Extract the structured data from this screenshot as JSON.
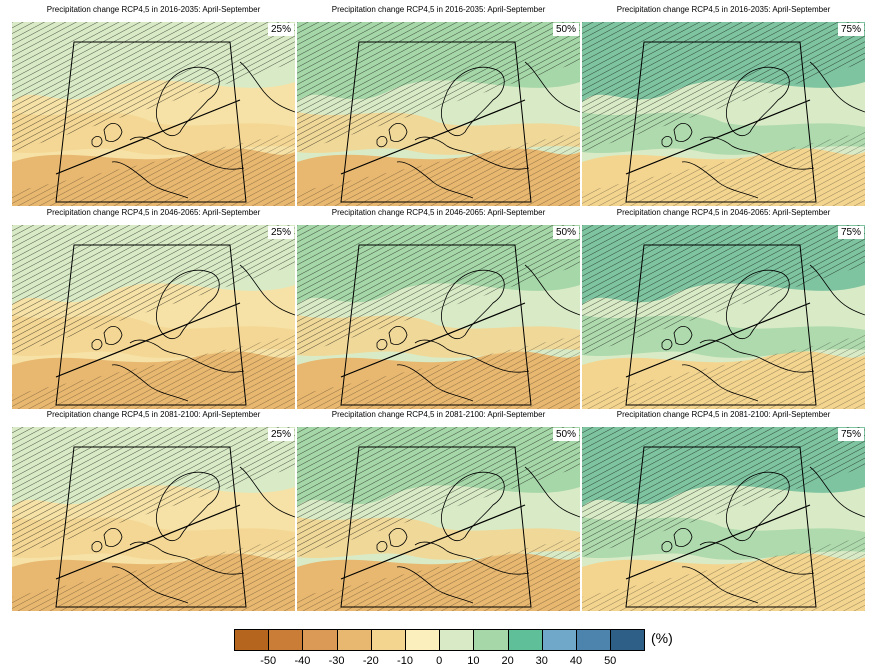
{
  "panels": [
    {
      "title": "Precipitation change RCP4,5 in 2016-2035: April-September",
      "percentile": "25%",
      "scheme": "dry"
    },
    {
      "title": "Precipitation change RCP4,5 in 2016-2035: April-September",
      "percentile": "50%",
      "scheme": "mid"
    },
    {
      "title": "Precipitation change RCP4,5 in 2016-2035: April-September",
      "percentile": "75%",
      "scheme": "wet"
    },
    {
      "title": "Precipitation change RCP4,5 in 2046-2065: April-September",
      "percentile": "25%",
      "scheme": "dry"
    },
    {
      "title": "Precipitation change RCP4,5 in 2046-2065: April-September",
      "percentile": "50%",
      "scheme": "mid"
    },
    {
      "title": "Precipitation change RCP4,5 in 2046-2065: April-September",
      "percentile": "75%",
      "scheme": "wet"
    },
    {
      "title": "Precipitation change RCP4,5 in 2081-2100: April-September",
      "percentile": "25%",
      "scheme": "dry"
    },
    {
      "title": "Precipitation change RCP4,5 in 2081-2100: April-September",
      "percentile": "50%",
      "scheme": "mid"
    },
    {
      "title": "Precipitation change RCP4,5 in 2081-2100: April-September",
      "percentile": "75%",
      "scheme": "wet"
    }
  ],
  "legend": {
    "units": "(%)",
    "colors": [
      "#b5651d",
      "#c97d37",
      "#dc9a57",
      "#e8b870",
      "#f3d590",
      "#fbf0bd",
      "#d9ebc6",
      "#a6d7a8",
      "#5fbf98",
      "#6fa8c9",
      "#4d84ad",
      "#2e5f86"
    ],
    "tick_labels": [
      "-50",
      "-40",
      "-30",
      "-20",
      "-10",
      "0",
      "10",
      "20",
      "30",
      "40",
      "50"
    ]
  }
}
